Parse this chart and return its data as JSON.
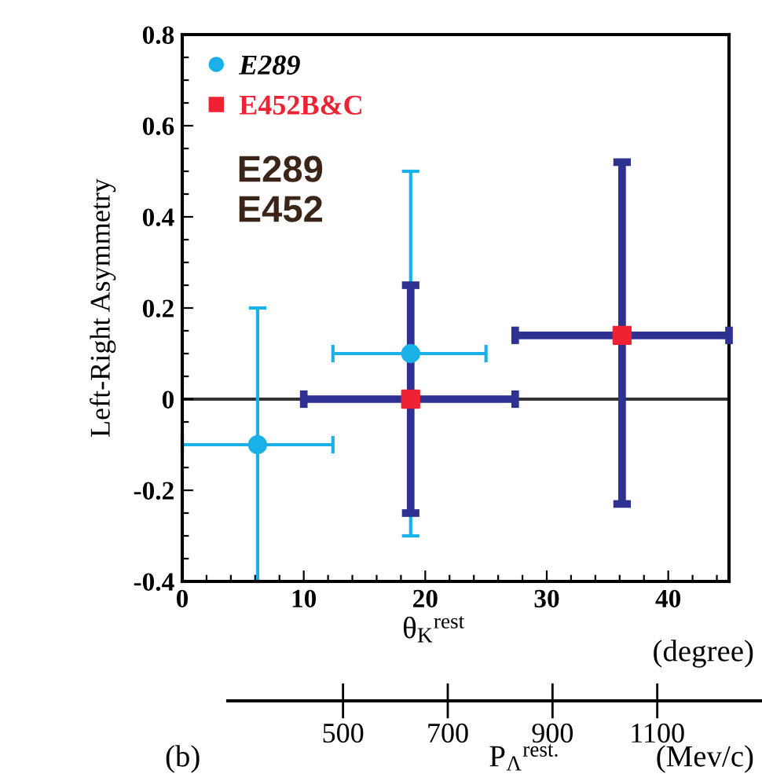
{
  "chart_data": {
    "type": "scatter",
    "ylabel": "Left-Right Asymmetry",
    "xlabel": "θ$_{K}$$^{rest}$",
    "x2label": "P$_{Λ}$$^{rest.}$",
    "annotations": [
      "E289\nE452",
      "(degree)",
      "(Mev/c)",
      "(b)"
    ],
    "xlim": [
      0,
      45
    ],
    "ylim": [
      -0.4,
      0.8
    ],
    "xticks": [
      0,
      {
        "value": 2,
        "label": null
      },
      {
        "value": 4,
        "label": null
      },
      {
        "value": 6,
        "label": null
      },
      {
        "value": 8,
        "label": null
      },
      10,
      {
        "value": 12,
        "label": null
      },
      {
        "value": 14,
        "label": null
      },
      {
        "value": 16,
        "label": null
      },
      {
        "value": 18,
        "label": null
      },
      20,
      {
        "value": 22,
        "label": null
      },
      {
        "value": 24,
        "label": null
      },
      {
        "value": 26,
        "label": null
      },
      {
        "value": 28,
        "label": null
      },
      30,
      {
        "value": 32,
        "label": null
      },
      {
        "value": 34,
        "label": null
      },
      {
        "value": 36,
        "label": null
      },
      {
        "value": 38,
        "label": null
      },
      40,
      {
        "value": 42,
        "label": null
      },
      {
        "value": 44,
        "label": null
      }
    ],
    "yticks": [
      -0.4,
      {
        "value": -0.35,
        "label": null
      },
      {
        "value": -0.3,
        "label": null
      },
      {
        "value": -0.25,
        "label": null
      },
      -0.2,
      {
        "value": -0.15,
        "label": null
      },
      {
        "value": -0.1,
        "label": null
      },
      {
        "value": -0.05,
        "label": null
      },
      0,
      {
        "value": 0.05,
        "label": null
      },
      {
        "value": 0.1,
        "label": null
      },
      {
        "value": 0.15,
        "label": null
      },
      0.2,
      {
        "value": 0.25,
        "label": null
      },
      {
        "value": 0.3,
        "label": null
      },
      {
        "value": 0.35,
        "label": null
      },
      0.4,
      {
        "value": 0.45,
        "label": null
      },
      {
        "value": 0.5,
        "label": null
      },
      {
        "value": 0.55,
        "label": null
      },
      0.6,
      {
        "value": 0.65,
        "label": null
      },
      {
        "value": 0.7,
        "label": null
      },
      {
        "value": 0.75,
        "label": null
      },
      0.8
    ],
    "x2lim": [
      280,
      1300
    ],
    "x2ticks": [
      500,
      700,
      900,
      1100
    ],
    "ref_lines": [
      {
        "axis": "y",
        "value": 0,
        "label": null,
        "color": "#333333"
      }
    ],
    "legend": "top left",
    "series": [
      {
        "name": "E289",
        "color": "#1ab0e8",
        "marker": "circle",
        "x": [
          6.2,
          18.8
        ],
        "values": [
          -0.1,
          0.1
        ],
        "errors": [
          [
            -0.4,
            0.2
          ],
          [
            -0.3,
            0.5
          ]
        ],
        "xerrors": [
          [
            0,
            12.4
          ],
          [
            12.4,
            25
          ]
        ]
      },
      {
        "name": "E452B&C",
        "color": "#2e3192",
        "colors": [
          "#ee2233",
          "#ee2233"
        ],
        "marker": "square",
        "x": [
          18.8,
          36.2
        ],
        "values": [
          0,
          0.14
        ],
        "errors": [
          [
            -0.25,
            0.25
          ],
          [
            -0.23,
            0.52
          ]
        ],
        "xerrors": [
          [
            10,
            27.4
          ],
          [
            27.4,
            45
          ]
        ]
      }
    ]
  }
}
